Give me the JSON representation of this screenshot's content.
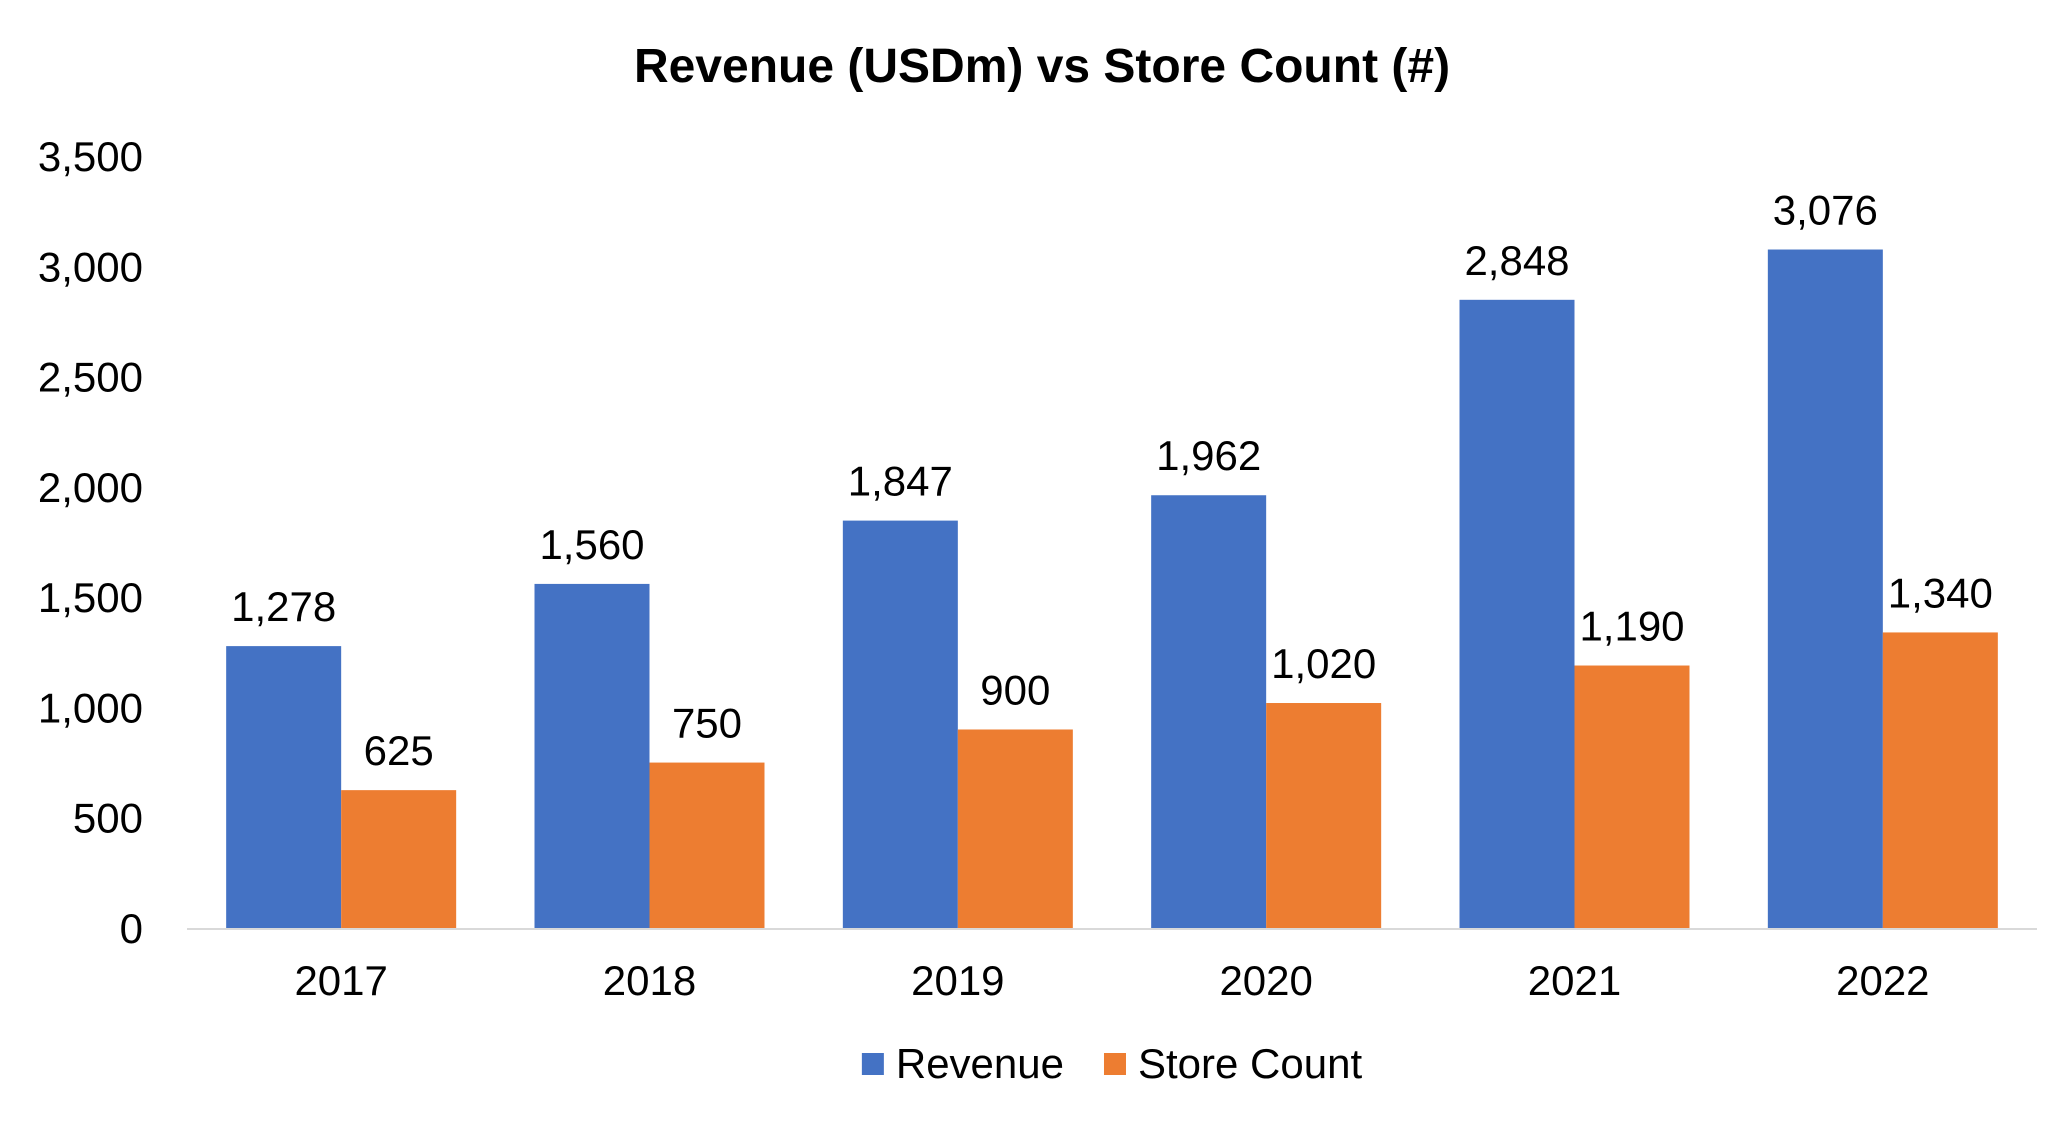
{
  "chart_data": {
    "type": "bar",
    "title": "Revenue (USDm) vs Store Count (#)",
    "xlabel": "",
    "ylabel": "",
    "categories": [
      "2017",
      "2018",
      "2019",
      "2020",
      "2021",
      "2022"
    ],
    "series": [
      {
        "name": "Revenue",
        "color": "#4472C4",
        "values": [
          1278,
          1560,
          1847,
          1962,
          2848,
          3076
        ],
        "labels": [
          "1,278",
          "1,560",
          "1,847",
          "1,962",
          "2,848",
          "3,076"
        ]
      },
      {
        "name": "Store Count",
        "color": "#ED7D31",
        "values": [
          625,
          750,
          900,
          1020,
          1190,
          1340
        ],
        "labels": [
          "625",
          "750",
          "900",
          "1,020",
          "1,190",
          "1,340"
        ]
      }
    ],
    "ylim": [
      0,
      3500
    ],
    "yticks": [
      0,
      500,
      1000,
      1500,
      2000,
      2500,
      3000,
      3500
    ],
    "ytick_labels": [
      "0",
      "500",
      "1,000",
      "1,500",
      "2,000",
      "2,500",
      "3,000",
      "3,500"
    ],
    "grid": false,
    "legend_position": "bottom"
  }
}
